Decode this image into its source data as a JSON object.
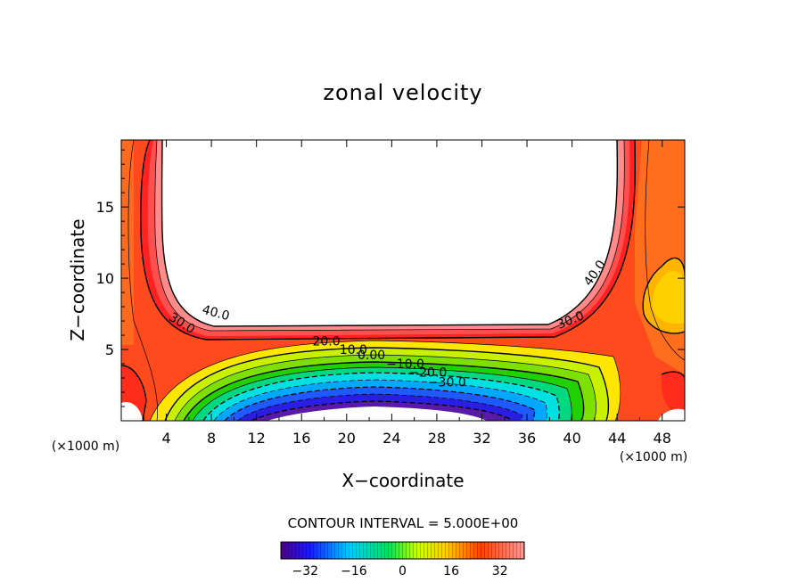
{
  "chart_data": {
    "type": "contour",
    "title": "zonal velocity",
    "xlabel": "X−coordinate",
    "ylabel": "Z−coordinate",
    "x_units_left": "(×1000 m)",
    "x_units_right": "(×1000 m)",
    "xlim": [
      0,
      50
    ],
    "ylim": [
      0,
      19.7
    ],
    "xticks": [
      4,
      8,
      12,
      16,
      20,
      24,
      28,
      32,
      36,
      40,
      44,
      48
    ],
    "yticks": [
      5,
      10,
      15
    ],
    "contour_interval_text": "CONTOUR INTERVAL = 5.000E+00",
    "contour_interval": 5.0,
    "colorbar": {
      "min": -40,
      "max": 40,
      "ticks": [
        -32,
        -16,
        0,
        16,
        32
      ]
    },
    "contour_labels": [
      {
        "text": "40.0",
        "x": 8.3,
        "z": 7.3,
        "angle": 15
      },
      {
        "text": "30.0",
        "x": 5.2,
        "z": 6.6,
        "angle": 32
      },
      {
        "text": "40.0",
        "x": 42.3,
        "z": 10.2,
        "angle": -55
      },
      {
        "text": "30.0",
        "x": 40.0,
        "z": 6.8,
        "angle": -22
      },
      {
        "text": "20.0",
        "x": 18.2,
        "z": 5.3,
        "angle": 0
      },
      {
        "text": "10.0",
        "x": 20.6,
        "z": 4.7,
        "angle": 0
      },
      {
        "text": "0.00",
        "x": 22.2,
        "z": 4.3,
        "angle": 0
      },
      {
        "text": "−10.0",
        "x": 25.2,
        "z": 3.7,
        "angle": 0
      },
      {
        "text": "−20.0",
        "x": 27.2,
        "z": 3.1,
        "angle": 0
      },
      {
        "text": "−30.0",
        "x": 28.9,
        "z": 2.4,
        "angle": 0
      }
    ]
  }
}
